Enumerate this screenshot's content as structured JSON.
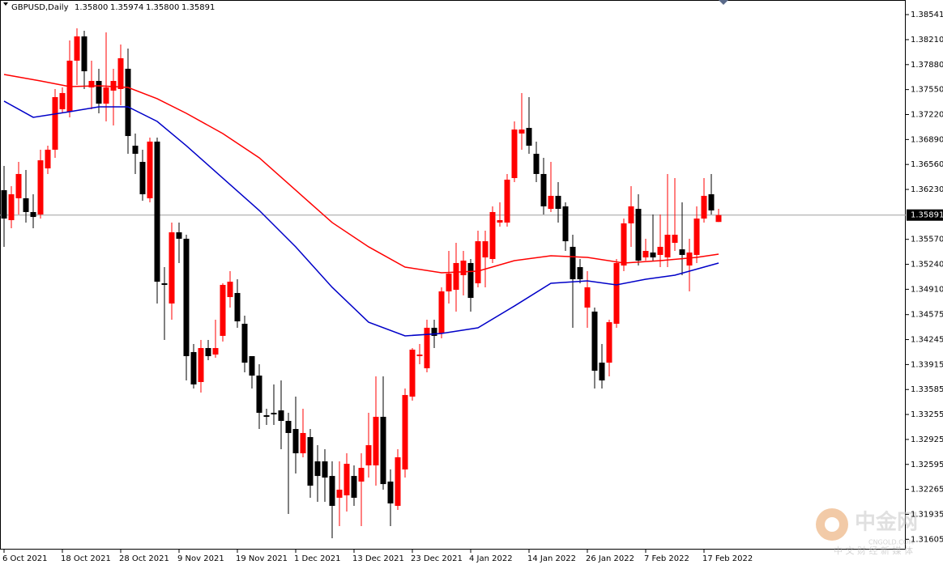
{
  "chart_data": {
    "type": "candlestick",
    "title": "GBPUSD,Daily",
    "header": {
      "values": [
        1.358,
        1.35974,
        1.358,
        1.35891
      ],
      "value_labels": [
        "1.35800",
        "1.35974",
        "1.35800",
        "1.35891"
      ]
    },
    "up_color": "#ff0000",
    "down_color": "#000000",
    "grid": false,
    "categories": [
      "6 Oct 2021",
      null,
      null,
      null,
      null,
      null,
      null,
      null,
      "18 Oct 2021",
      null,
      null,
      null,
      null,
      null,
      null,
      null,
      "28 Oct 2021",
      null,
      null,
      null,
      null,
      null,
      null,
      null,
      "9 Nov 2021",
      null,
      null,
      null,
      null,
      null,
      null,
      null,
      "19 Nov 2021",
      null,
      null,
      null,
      null,
      null,
      null,
      null,
      "1 Dec 2021",
      null,
      null,
      null,
      null,
      null,
      null,
      null,
      "13 Dec 2021",
      null,
      null,
      null,
      null,
      null,
      null,
      null,
      "23 Dec 2021",
      null,
      null,
      null,
      null,
      null,
      null,
      null,
      "4 Jan 2022",
      null,
      null,
      null,
      null,
      null,
      null,
      null,
      "14 Jan 2022",
      null,
      null,
      null,
      null,
      null,
      null,
      null,
      "26 Jan 2022",
      null,
      null,
      null,
      null,
      null,
      null,
      null,
      "7 Feb 2022",
      null,
      null,
      null,
      null,
      null,
      null,
      null,
      "17 Feb 2022",
      null,
      null
    ],
    "ohlc": [
      [
        1.3622,
        1.36541,
        1.35471,
        1.35845
      ],
      [
        1.35824,
        1.36273,
        1.35717,
        1.36166
      ],
      [
        1.36113,
        1.36594,
        1.35899,
        1.36434
      ],
      [
        1.36113,
        1.36487,
        1.35792,
        1.35931
      ],
      [
        1.35931,
        1.36166,
        1.35717,
        1.35866
      ],
      [
        1.35899,
        1.36755,
        1.35845,
        1.36615
      ],
      [
        1.36508,
        1.36808,
        1.36434,
        1.36755
      ],
      [
        1.36755,
        1.37557,
        1.36648,
        1.3745
      ],
      [
        1.3729,
        1.37578,
        1.37236,
        1.37504
      ],
      [
        1.37257,
        1.38199,
        1.37183,
        1.37932
      ],
      [
        1.37932,
        1.3836,
        1.37611,
        1.38253
      ],
      [
        1.38253,
        1.38327,
        1.37557,
        1.37792
      ],
      [
        1.37578,
        1.37932,
        1.3729,
        1.37664
      ],
      [
        1.37664,
        1.37825,
        1.37236,
        1.37364
      ],
      [
        1.37364,
        1.38306,
        1.37129,
        1.37578
      ],
      [
        1.37536,
        1.37825,
        1.37076,
        1.37664
      ],
      [
        1.37557,
        1.38146,
        1.37343,
        1.37964
      ],
      [
        1.37825,
        1.38092,
        1.36701,
        1.36936
      ],
      [
        1.36808,
        1.36969,
        1.36434,
        1.36701
      ],
      [
        1.36594,
        1.36755,
        1.3608,
        1.36166
      ],
      [
        1.36113,
        1.36915,
        1.36059,
        1.36862
      ],
      [
        1.36862,
        1.36915,
        1.34722,
        1.3501
      ],
      [
        1.34989,
        1.35203,
        1.3424,
        1.34968
      ],
      [
        1.34722,
        1.35792,
        1.34508,
        1.35663
      ],
      [
        1.35663,
        1.35792,
        1.35257,
        1.35578
      ],
      [
        1.35578,
        1.35631,
        1.33705,
        1.34026
      ],
      [
        1.3408,
        1.34187,
        1.33598,
        1.33652
      ],
      [
        1.33684,
        1.3424,
        1.33545,
        1.34133
      ],
      [
        1.34133,
        1.3424,
        1.33973,
        1.34026
      ],
      [
        1.34047,
        1.34508,
        1.34005,
        1.34133
      ],
      [
        1.34294,
        1.34989,
        1.34219,
        1.34968
      ],
      [
        1.34807,
        1.3515,
        1.34668,
        1.3501
      ],
      [
        1.34861,
        1.35043,
        1.34401,
        1.34486
      ],
      [
        1.34454,
        1.34561,
        1.33812,
        1.3394
      ],
      [
        1.34026,
        1.34026,
        1.33598,
        1.33769
      ],
      [
        1.33769,
        1.33919,
        1.33063,
        1.33277
      ],
      [
        1.33245,
        1.33331,
        1.33117,
        1.33224
      ],
      [
        1.33277,
        1.33652,
        1.33117,
        1.33256
      ],
      [
        1.33309,
        1.33705,
        1.32796,
        1.3317
      ],
      [
        1.3317,
        1.33277,
        1.3194,
        1.3301
      ],
      [
        1.33063,
        1.33491,
        1.32475,
        1.32742
      ],
      [
        1.32742,
        1.33331,
        1.32689,
        1.3301
      ],
      [
        1.32956,
        1.33063,
        1.32154,
        1.32314
      ],
      [
        1.32635,
        1.32849,
        1.321,
        1.32442
      ],
      [
        1.32635,
        1.32796,
        1.321,
        1.32421
      ],
      [
        1.32442,
        1.32635,
        1.31619,
        1.32047
      ],
      [
        1.32154,
        1.32635,
        1.31779,
        1.32261
      ],
      [
        1.32186,
        1.32742,
        1.31972,
        1.32603
      ],
      [
        1.32442,
        1.32582,
        1.32047,
        1.32154
      ],
      [
        1.32368,
        1.32742,
        1.31779,
        1.32549
      ],
      [
        1.32582,
        1.33277,
        1.32421,
        1.32849
      ],
      [
        1.32582,
        1.33759,
        1.32314,
        1.33224
      ],
      [
        1.33224,
        1.33759,
        1.32261,
        1.32335
      ],
      [
        1.32368,
        1.32528,
        1.31779,
        1.32079
      ],
      [
        1.32047,
        1.32796,
        1.31993,
        1.32689
      ],
      [
        1.32528,
        1.33598,
        1.32421,
        1.33512
      ],
      [
        1.33491,
        1.34133,
        1.33438,
        1.34112
      ],
      [
        1.34026,
        1.34187,
        1.33919,
        1.34047
      ],
      [
        1.33866,
        1.34508,
        1.33812,
        1.34401
      ],
      [
        1.34401,
        1.34508,
        1.34133,
        1.34294
      ],
      [
        1.34326,
        1.34936,
        1.34261,
        1.34882
      ],
      [
        1.34882,
        1.35417,
        1.34722,
        1.35117
      ],
      [
        1.34903,
        1.35524,
        1.34615,
        1.35257
      ],
      [
        1.35096,
        1.35417,
        1.34829,
        1.35289
      ],
      [
        1.35257,
        1.3531,
        1.34615,
        1.34796
      ],
      [
        1.34989,
        1.35685,
        1.34936,
        1.35545
      ],
      [
        1.35331,
        1.35685,
        1.34936,
        1.35545
      ],
      [
        1.3531,
        1.36006,
        1.35257,
        1.35931
      ],
      [
        1.35792,
        1.36059,
        1.35738,
        1.35824
      ],
      [
        1.35792,
        1.36434,
        1.35738,
        1.36359
      ],
      [
        1.3638,
        1.37129,
        1.36327,
        1.37022
      ],
      [
        1.36969,
        1.37504,
        1.36755,
        1.37022
      ],
      [
        1.37043,
        1.3745,
        1.36701,
        1.36808
      ],
      [
        1.36701,
        1.36862,
        1.36327,
        1.36434
      ],
      [
        1.36434,
        1.36648,
        1.35899,
        1.36006
      ],
      [
        1.35973,
        1.36594,
        1.35931,
        1.36145
      ],
      [
        1.36145,
        1.36327,
        1.35792,
        1.35973
      ],
      [
        1.36006,
        1.36059,
        1.35417,
        1.35545
      ],
      [
        1.35471,
        1.35631,
        1.34401,
        1.35043
      ],
      [
        1.35203,
        1.3531,
        1.34989,
        1.35043
      ],
      [
        1.34668,
        1.3515,
        1.34401,
        1.34936
      ],
      [
        1.34615,
        1.34668,
        1.33598,
        1.33833
      ],
      [
        1.3394,
        1.34187,
        1.33598,
        1.33705
      ],
      [
        1.3394,
        1.34508,
        1.33759,
        1.34475
      ],
      [
        1.34454,
        1.3531,
        1.34401,
        1.35257
      ],
      [
        1.35224,
        1.35845,
        1.3515,
        1.35781
      ],
      [
        1.35781,
        1.36273,
        1.35471,
        1.36006
      ],
      [
        1.35973,
        1.36166,
        1.35224,
        1.35289
      ],
      [
        1.35331,
        1.35578,
        1.35289,
        1.35417
      ],
      [
        1.35396,
        1.35899,
        1.35289,
        1.35331
      ],
      [
        1.35364,
        1.35899,
        1.35203,
        1.35471
      ],
      [
        1.35331,
        1.36434,
        1.35203,
        1.35631
      ],
      [
        1.35524,
        1.3638,
        1.35417,
        1.35631
      ],
      [
        1.35438,
        1.36059,
        1.35096,
        1.35364
      ],
      [
        1.35224,
        1.35578,
        1.34882,
        1.35396
      ],
      [
        1.35364,
        1.36006,
        1.35257,
        1.35845
      ],
      [
        1.35845,
        1.3638,
        1.35792,
        1.36145
      ],
      [
        1.36166,
        1.36434,
        1.35899,
        1.35952
      ],
      [
        1.358,
        1.35974,
        1.358,
        1.35891
      ]
    ],
    "series": [
      {
        "color": "#ff0000",
        "x": [
          0,
          5,
          9,
          13,
          17,
          21,
          25,
          30,
          35,
          40,
          45,
          50,
          55,
          60,
          65,
          70,
          75,
          80,
          85,
          90,
          95,
          98
        ],
        "values": [
          1.3775,
          1.37664,
          1.37589,
          1.376,
          1.37578,
          1.37429,
          1.37236,
          1.36969,
          1.36648,
          1.3622,
          1.35792,
          1.35471,
          1.35203,
          1.35128,
          1.3515,
          1.35289,
          1.35353,
          1.35331,
          1.35257,
          1.35289,
          1.35331,
          1.35374
        ]
      },
      {
        "color": "#0000c8",
        "x": [
          0,
          4,
          9,
          13,
          17,
          21,
          25,
          30,
          35,
          40,
          45,
          50,
          55,
          60,
          65,
          70,
          75,
          80,
          84,
          88,
          92,
          98
        ],
        "values": [
          1.37397,
          1.37183,
          1.37257,
          1.37322,
          1.37322,
          1.37129,
          1.36808,
          1.3638,
          1.35952,
          1.35471,
          1.34936,
          1.34475,
          1.34294,
          1.34326,
          1.34401,
          1.34689,
          1.34989,
          1.35021,
          1.34968,
          1.35043,
          1.35096,
          1.35257
        ]
      }
    ],
    "current_price": 1.35891,
    "ylim": [
      1.31469,
      1.38734
    ],
    "yticks": [
      1.38541,
      {
        "value": 1.3821,
        "label": "1.38210"
      },
      {
        "value": 1.3788,
        "label": "1.37880"
      },
      {
        "value": 1.3755,
        "label": "1.37550"
      },
      {
        "value": 1.3722,
        "label": "1.37220"
      },
      {
        "value": 1.3689,
        "label": "1.36890"
      },
      {
        "value": 1.3656,
        "label": "1.36560"
      },
      {
        "value": 1.3623,
        "label": "1.36230"
      },
      {
        "value": 1.3557,
        "label": "1.35570"
      },
      {
        "value": 1.3524,
        "label": "1.35240"
      },
      {
        "value": 1.3491,
        "label": "1.34910"
      },
      1.34575,
      1.34245,
      1.33915,
      1.33585,
      1.33255,
      1.32925,
      1.32595,
      1.32265,
      1.31935,
      1.31605
    ],
    "watermark": {
      "logo": "中金网",
      "site": "CNGOLD.COM",
      "tagline": "中 文 财 经 新 媒 体"
    }
  }
}
